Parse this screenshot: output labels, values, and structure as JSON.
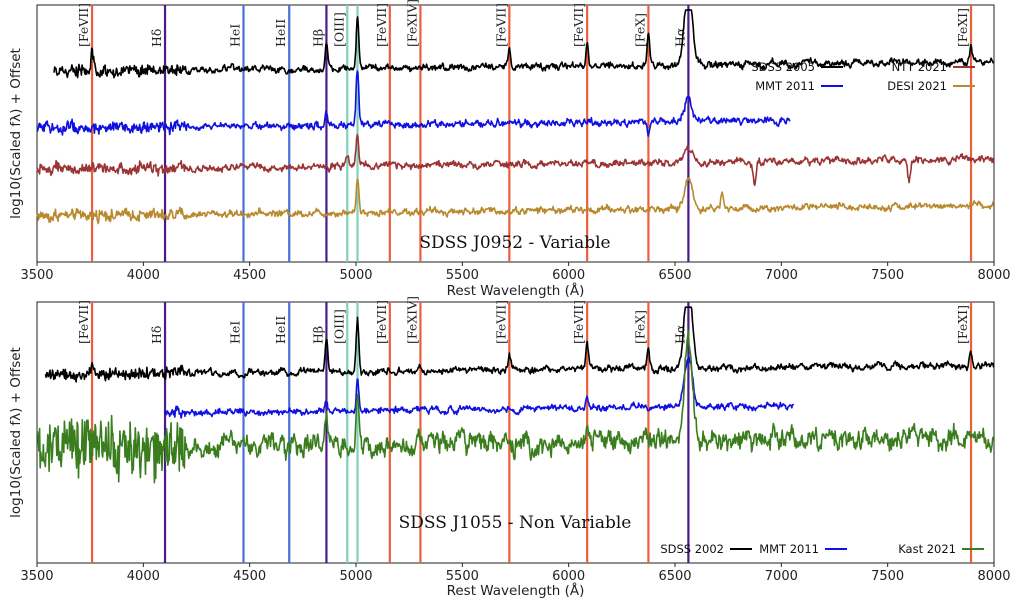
{
  "chart_data": [
    {
      "type": "line",
      "title": "SDSS J0952 - Variable",
      "xlabel": "Rest Wavelength (Å)",
      "ylabel": "log10(Scaled fλ) + Offset",
      "xlim": [
        3500,
        8000
      ],
      "xticks": [
        "3500",
        "4000",
        "4500",
        "5000",
        "5500",
        "6000",
        "6500",
        "7000",
        "7500",
        "8000"
      ],
      "legend_position": "upper-right",
      "emission_lines": [
        {
          "label": "[FeVII]",
          "wavelength": 3759,
          "color": "#e8603c"
        },
        {
          "label": "Hδ",
          "wavelength": 4102,
          "color": "#4b1a8a"
        },
        {
          "label": "HeI",
          "wavelength": 4471,
          "color": "#4a6fd8"
        },
        {
          "label": "HeII",
          "wavelength": 4686,
          "color": "#4a6fd8"
        },
        {
          "label": "Hβ",
          "wavelength": 4861,
          "color": "#4b1a8a"
        },
        {
          "label": "[OIII]",
          "wavelength": 4959,
          "color": "#7fd1b9"
        },
        {
          "label": "",
          "wavelength": 5007,
          "color": "#7fd1b9"
        },
        {
          "label": "[FeVII]",
          "wavelength": 5159,
          "color": "#e8603c"
        },
        {
          "label": "[FeXIV]",
          "wavelength": 5303,
          "color": "#e8603c"
        },
        {
          "label": "[FeVII]",
          "wavelength": 5721,
          "color": "#e8603c"
        },
        {
          "label": "[FeVII]",
          "wavelength": 6087,
          "color": "#e8603c"
        },
        {
          "label": "[FeX]",
          "wavelength": 6375,
          "color": "#e8603c"
        },
        {
          "label": "Hα",
          "wavelength": 6563,
          "color": "#4b1a8a"
        },
        {
          "label": "[FeXI]",
          "wavelength": 7892,
          "color": "#e8603c"
        }
      ],
      "series": [
        {
          "name": "SDSS 2005",
          "color": "#000000",
          "x_range": [
            3580,
            8000
          ],
          "level": 0.74,
          "features": [
            [
              3759,
              0.08
            ],
            [
              4861,
              0.1
            ],
            [
              5007,
              0.2
            ],
            [
              5721,
              0.06
            ],
            [
              6087,
              0.1
            ],
            [
              6375,
              0.12
            ],
            [
              6563,
              0.3
            ],
            [
              7892,
              0.06
            ]
          ]
        },
        {
          "name": "MMT 2011",
          "color": "#1010e0",
          "x_range": [
            3500,
            7040
          ],
          "level": 0.52,
          "features": [
            [
              4861,
              0.06
            ],
            [
              5007,
              0.22
            ],
            [
              6563,
              0.1
            ],
            [
              6375,
              -0.05
            ]
          ]
        },
        {
          "name": "NTT 2021",
          "color": "#9b3535",
          "x_range": [
            3500,
            8000
          ],
          "level": 0.36,
          "features": [
            [
              4959,
              0.05
            ],
            [
              5007,
              0.12
            ],
            [
              6563,
              0.06
            ],
            [
              6875,
              -0.08
            ],
            [
              7600,
              -0.08
            ]
          ]
        },
        {
          "name": "DESI 2021",
          "color": "#b8892e",
          "x_range": [
            3500,
            8000
          ],
          "level": 0.18,
          "features": [
            [
              5007,
              0.14
            ],
            [
              6563,
              0.12
            ],
            [
              6720,
              0.06
            ]
          ]
        }
      ]
    },
    {
      "type": "line",
      "title": "SDSS J1055 - Non Variable",
      "xlabel": "Rest Wavelength (Å)",
      "ylabel": "log10(Scaled fλ) + Offset",
      "xlim": [
        3500,
        8000
      ],
      "xticks": [
        "3500",
        "4000",
        "4500",
        "5000",
        "5500",
        "6000",
        "6500",
        "7000",
        "7500",
        "8000"
      ],
      "legend_position": "lower-right",
      "emission_lines": [
        {
          "label": "[FeVII]",
          "wavelength": 3759,
          "color": "#e8603c"
        },
        {
          "label": "Hδ",
          "wavelength": 4102,
          "color": "#4b1a8a"
        },
        {
          "label": "HeI",
          "wavelength": 4471,
          "color": "#4a6fd8"
        },
        {
          "label": "HeII",
          "wavelength": 4686,
          "color": "#4a6fd8"
        },
        {
          "label": "Hβ",
          "wavelength": 4861,
          "color": "#4b1a8a"
        },
        {
          "label": "[OIII]",
          "wavelength": 4959,
          "color": "#7fd1b9"
        },
        {
          "label": "",
          "wavelength": 5007,
          "color": "#7fd1b9"
        },
        {
          "label": "[FeVII]",
          "wavelength": 5159,
          "color": "#e8603c"
        },
        {
          "label": "[FeXIV]",
          "wavelength": 5303,
          "color": "#e8603c"
        },
        {
          "label": "[FeVII]",
          "wavelength": 5721,
          "color": "#e8603c"
        },
        {
          "label": "[FeVII]",
          "wavelength": 6087,
          "color": "#e8603c"
        },
        {
          "label": "[FeX]",
          "wavelength": 6375,
          "color": "#e8603c"
        },
        {
          "label": "Hα",
          "wavelength": 6563,
          "color": "#4b1a8a"
        },
        {
          "label": "[FeXI]",
          "wavelength": 7892,
          "color": "#e8603c"
        }
      ],
      "series": [
        {
          "name": "SDSS 2002",
          "color": "#000000",
          "x_range": [
            3540,
            8000
          ],
          "level": 0.72,
          "features": [
            [
              3759,
              0.05
            ],
            [
              4861,
              0.12
            ],
            [
              5007,
              0.2
            ],
            [
              5721,
              0.05
            ],
            [
              6087,
              0.1
            ],
            [
              6375,
              0.07
            ],
            [
              6563,
              0.35
            ],
            [
              7892,
              0.05
            ]
          ]
        },
        {
          "name": "MMT 2011",
          "color": "#1010e0",
          "x_range": [
            4100,
            7060
          ],
          "level": 0.57,
          "features": [
            [
              4861,
              0.05
            ],
            [
              5007,
              0.12
            ],
            [
              6087,
              0.04
            ],
            [
              6563,
              0.2
            ]
          ]
        },
        {
          "name": "Kast 2021",
          "color": "#3a7d1e",
          "x_range": [
            3500,
            8000
          ],
          "level": 0.44,
          "features": [
            [
              4861,
              0.12
            ],
            [
              5007,
              0.2
            ],
            [
              6087,
              0.06
            ],
            [
              6563,
              0.4
            ]
          ]
        }
      ]
    }
  ]
}
